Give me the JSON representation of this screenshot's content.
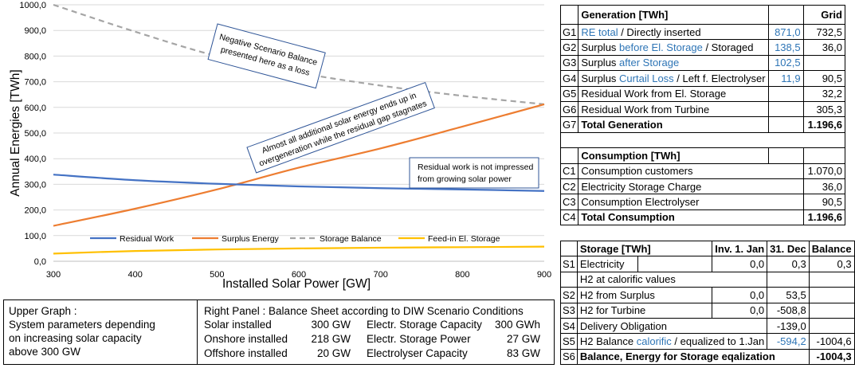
{
  "chart_data": {
    "type": "line",
    "xlabel": "Installed Solar Power [GW]",
    "ylabel": "Annual Energies [TWh]",
    "xlim": [
      300,
      900
    ],
    "ylim": [
      0,
      1000
    ],
    "x_ticks": [
      "300",
      "400",
      "500",
      "600",
      "700",
      "800",
      "900"
    ],
    "y_ticks": [
      "0,0",
      "100,0",
      "200,0",
      "300,0",
      "400,0",
      "500,0",
      "600,0",
      "700,0",
      "800,0",
      "900,0",
      "1000,0"
    ],
    "grid": "horizontal",
    "legend_position": "bottom-inside",
    "series": [
      {
        "name": "Residual Work",
        "color": "#4472c4",
        "dash": "solid",
        "x": [
          300,
          400,
          500,
          600,
          700,
          800,
          900
        ],
        "values": [
          338,
          316,
          302,
          292,
          285,
          280,
          274
        ]
      },
      {
        "name": "Surplus Energy",
        "color": "#ed7d31",
        "dash": "solid",
        "x": [
          300,
          400,
          500,
          600,
          700,
          800,
          900
        ],
        "values": [
          138,
          205,
          280,
          365,
          440,
          525,
          612
        ]
      },
      {
        "name": "Storage Balance",
        "color": "#a5a5a5",
        "dash": "dashed",
        "x": [
          300,
          400,
          500,
          600,
          700,
          800,
          900
        ],
        "values": [
          1000,
          895,
          800,
          735,
          685,
          645,
          612
        ]
      },
      {
        "name": "Feed-in El. Storage",
        "color": "#ffc000",
        "dash": "solid",
        "x": [
          300,
          400,
          500,
          600,
          700,
          800,
          900
        ],
        "values": [
          30,
          40,
          46,
          50,
          53,
          55,
          57
        ]
      }
    ],
    "annotations": [
      {
        "text": "Negative Scenario Balance presented here as a loss"
      },
      {
        "text": "Almost all additional solar energy ends up in overgeneration while the residual gap stagnates"
      },
      {
        "text": "Residual work is not impressed from growing solar power"
      }
    ]
  },
  "annotations": {
    "neg1": "Negative Scenario Balance",
    "neg2": "presented here as a loss",
    "over1": "Almost all additional solar energy ends up in",
    "over2": "overgeneration while the residual gap stagnates",
    "res1": "Residual work is not impressed",
    "res2": "from growing solar power"
  },
  "bottom": {
    "upper_graph": [
      "Upper Graph :",
      "System parameters depending",
      "on increasing solar capacity",
      "above 300 GW"
    ],
    "panel_title": "Right Panel : Balance Sheet according to DIW Scenario Conditions",
    "rows": [
      {
        "a": "Solar installed",
        "b": "300 GW",
        "c": "Electr. Storage Capacity",
        "d": "300 GWh"
      },
      {
        "a": "Onshore installed",
        "b": "218 GW",
        "c": "Electr. Storage Power",
        "d": "27 GW"
      },
      {
        "a": "Offshore installed",
        "b": "20 GW",
        "c": "Electrolyser Capacity",
        "d": "83 GW"
      }
    ]
  },
  "generation": {
    "title": "Generation [TWh]",
    "grid_label": "Grid",
    "g1": {
      "code": "G1",
      "blue": "RE total",
      "rest": " / Directly inserted",
      "v1": "871,0",
      "v2": "732,5"
    },
    "g2": {
      "code": "G2",
      "pre": "Surplus ",
      "blue": "before El. Storage",
      "rest": " / Storaged",
      "v1": "138,5",
      "v2": "36,0"
    },
    "g3": {
      "code": "G3",
      "pre": "Surplus ",
      "blue": "after Storage",
      "v1": "102,5"
    },
    "g4": {
      "code": "G4",
      "pre": "Surplus ",
      "blue": "Curtail Loss",
      "rest": " / Left f. Electrolyser",
      "v1": "11,9",
      "v2": "90,5"
    },
    "g5": {
      "code": "G5",
      "label": "Residual Work from El. Storage",
      "v2": "32,2"
    },
    "g6": {
      "code": "G6",
      "label": "Residual Work from Turbine",
      "v2": "305,3"
    },
    "g7": {
      "code": "G7",
      "label": "Total Generation",
      "v2": "1.196,6"
    }
  },
  "consumption": {
    "title": "Consumption [TWh]",
    "c1": {
      "code": "C1",
      "label": "Consumption customers",
      "v": "1.070,0"
    },
    "c2": {
      "code": "C2",
      "label": "Electricity Storage Charge",
      "v": "36,0"
    },
    "c3": {
      "code": "C3",
      "label": "Consumption Electrolyser",
      "v": "90,5"
    },
    "c4": {
      "code": "C4",
      "label": "Total Consumption",
      "v": "1.196,6"
    }
  },
  "storage": {
    "title": "Storage [TWh]",
    "h_inv": "Inv. 1. Jan",
    "h_dec": "31. Dec",
    "h_bal": "Balance",
    "s1": {
      "code": "S1",
      "label": "Electricity",
      "inv": "0,0",
      "dec": "0,3",
      "bal": "0,3"
    },
    "h2": "H2 at calorific values",
    "s2": {
      "code": "S2",
      "label": "H2 from Surplus",
      "inv": "0,0",
      "dec": "53,5"
    },
    "s3": {
      "code": "S3",
      "label": "H2 for Turbine",
      "inv": "0,0",
      "dec": "-508,8"
    },
    "s4": {
      "code": "S4",
      "label": "Delivery Obligation",
      "dec": "-139,0"
    },
    "s5": {
      "code": "S5",
      "pre": "H2 Balance ",
      "blue": "calorific",
      "rest": " / equalized to 1.Jan",
      "dec": "-594,2",
      "bal": "-1004,6"
    },
    "s6": {
      "code": "S6",
      "label": "Balance, Energy for Storage eqalization",
      "bal": "-1004,3"
    }
  }
}
